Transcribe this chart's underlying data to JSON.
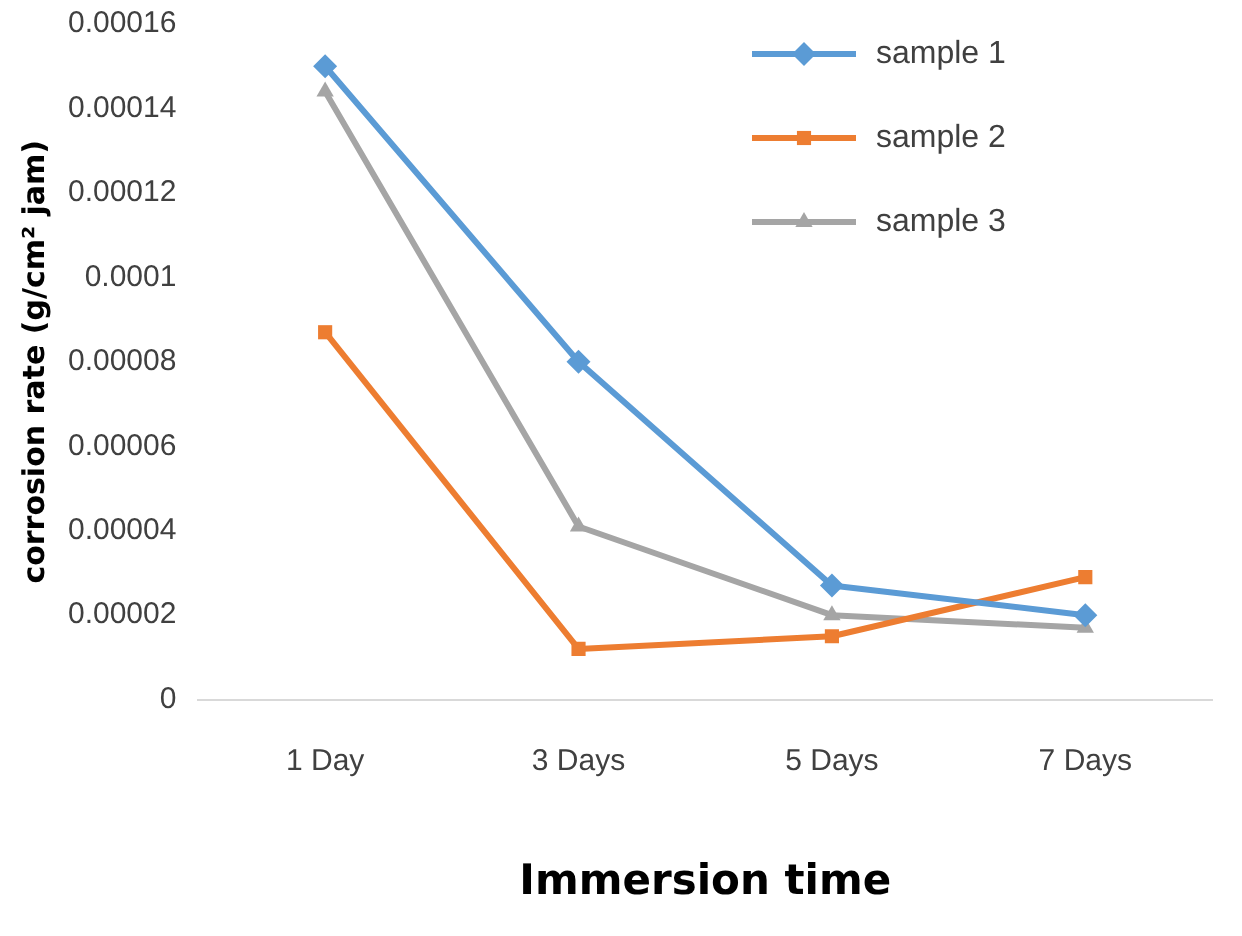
{
  "chart_data": {
    "type": "line",
    "xlabel": "Immersion time",
    "ylabel": "corrosion rate (g/cm² jam)",
    "categories": [
      "1 Day",
      "3 Days",
      "5 Days",
      "7 Days"
    ],
    "series": [
      {
        "name": "sample 1",
        "color": "#5b9bd5",
        "marker": "diamond",
        "values": [
          0.00015,
          8e-05,
          2.7e-05,
          2e-05
        ]
      },
      {
        "name": "sample 2",
        "color": "#ed7d31",
        "marker": "square",
        "values": [
          8.7e-05,
          1.2e-05,
          1.5e-05,
          2.9e-05
        ]
      },
      {
        "name": "sample 3",
        "color": "#a5a5a5",
        "marker": "triangle",
        "values": [
          0.000144,
          4.1e-05,
          2e-05,
          1.7e-05
        ]
      }
    ],
    "ylim": [
      0,
      0.00016
    ],
    "yticks": [
      {
        "value": 0,
        "label": "0"
      },
      {
        "value": 2e-05,
        "label": "0.00002"
      },
      {
        "value": 4e-05,
        "label": "0.00004"
      },
      {
        "value": 6e-05,
        "label": "0.00006"
      },
      {
        "value": 8e-05,
        "label": "0.00008"
      },
      {
        "value": 0.0001,
        "label": "0.0001"
      },
      {
        "value": 0.00012,
        "label": "0.00012"
      },
      {
        "value": 0.00014,
        "label": "0.00014"
      },
      {
        "value": 0.00016,
        "label": "0.00016"
      }
    ],
    "grid": false,
    "legend": "top right",
    "line_style": "solid"
  }
}
